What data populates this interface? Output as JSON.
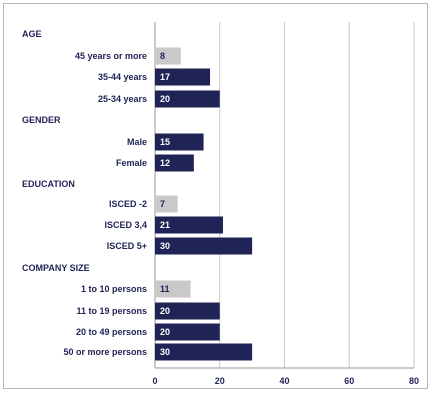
{
  "chart_data": {
    "type": "bar",
    "orientation": "horizontal",
    "xlim": [
      0,
      80
    ],
    "x_ticks": [
      "0",
      "20",
      "40",
      "60",
      "80"
    ],
    "grid": true,
    "colors": {
      "primary": "#1f2355",
      "muted": "#c9c9c9",
      "grid": "#c8c8c8"
    },
    "groups": [
      {
        "label": "AGE",
        "rows": [
          {
            "label": "45 years or more",
            "value": 8,
            "value_label": "8",
            "muted": true
          },
          {
            "label": "35-44 years",
            "value": 17,
            "value_label": "17",
            "muted": false
          },
          {
            "label": "25-34 years",
            "value": 20,
            "value_label": "20",
            "muted": false
          }
        ]
      },
      {
        "label": "GENDER",
        "rows": [
          {
            "label": "Male",
            "value": 15,
            "value_label": "15",
            "muted": false
          },
          {
            "label": "Female",
            "value": 12,
            "value_label": "12",
            "muted": false
          }
        ]
      },
      {
        "label": "EDUCATION",
        "rows": [
          {
            "label": "ISCED -2",
            "value": 7,
            "value_label": "7",
            "muted": true
          },
          {
            "label": "ISCED 3,4",
            "value": 21,
            "value_label": "21",
            "muted": false
          },
          {
            "label": "ISCED 5+",
            "value": 30,
            "value_label": "30",
            "muted": false
          }
        ]
      },
      {
        "label": "COMPANY SIZE",
        "rows": [
          {
            "label": "1 to 10 persons",
            "value": 11,
            "value_label": "11",
            "muted": true
          },
          {
            "label": "11 to 19 persons",
            "value": 20,
            "value_label": "20",
            "muted": false
          },
          {
            "label": "20 to 49 persons",
            "value": 20,
            "value_label": "20",
            "muted": false
          },
          {
            "label": "50 or more persons",
            "value": 30,
            "value_label": "30",
            "muted": false
          }
        ]
      }
    ]
  }
}
